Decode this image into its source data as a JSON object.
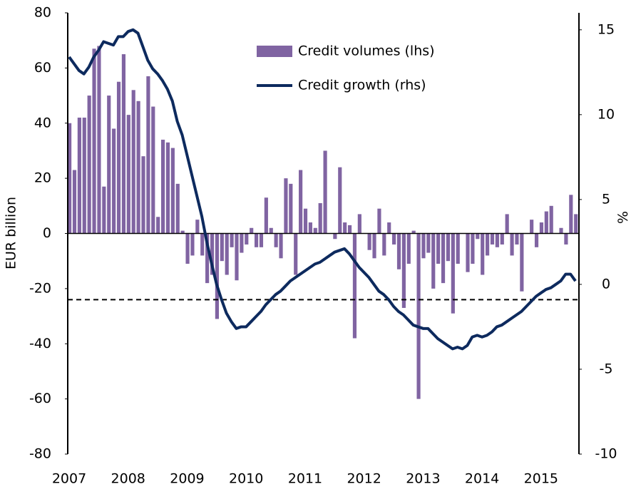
{
  "chart_data": {
    "type": "bar-line",
    "y_label": "EUR billion",
    "y2_label": "%",
    "categories": [
      "2007",
      null,
      null,
      null,
      null,
      null,
      null,
      null,
      null,
      null,
      null,
      null,
      "2008",
      null,
      null,
      null,
      null,
      null,
      null,
      null,
      null,
      null,
      null,
      null,
      "2009",
      null,
      null,
      null,
      null,
      null,
      null,
      null,
      null,
      null,
      null,
      null,
      "2010",
      null,
      null,
      null,
      null,
      null,
      null,
      null,
      null,
      null,
      null,
      null,
      "2011",
      null,
      null,
      null,
      null,
      null,
      null,
      null,
      null,
      null,
      null,
      null,
      "2012",
      null,
      null,
      null,
      null,
      null,
      null,
      null,
      null,
      null,
      null,
      null,
      "2013",
      null,
      null,
      null,
      null,
      null,
      null,
      null,
      null,
      null,
      null,
      null,
      "2014",
      null,
      null,
      null,
      null,
      null,
      null,
      null,
      null,
      null,
      null,
      null,
      "2015",
      null,
      null,
      null,
      null,
      null,
      null,
      null
    ],
    "series": [
      {
        "name": "Credit volumes (lhs)",
        "type": "bar",
        "color": "#8064a2",
        "values": [
          40,
          23,
          42,
          42,
          50,
          67,
          68,
          17,
          50,
          38,
          55,
          65,
          43,
          52,
          48,
          28,
          57,
          46,
          6,
          34,
          33,
          31,
          18,
          1,
          -11,
          -8,
          5,
          -8,
          -18,
          -15,
          -31,
          -10,
          -15,
          -5,
          -17,
          -7,
          -4,
          2,
          -5,
          -5,
          13,
          2,
          -5,
          -9,
          20,
          18,
          -15,
          23,
          9,
          4,
          2,
          11,
          30,
          0,
          -2,
          24,
          4,
          3,
          -38,
          7,
          0,
          -6,
          -9,
          9,
          -8,
          4,
          -4,
          -13,
          -27,
          -11,
          1,
          -60,
          -9,
          -7,
          -20,
          -11,
          -18,
          -10,
          -29,
          -11,
          0,
          -14,
          -11,
          -2,
          -15,
          -8,
          -4,
          -5,
          -4,
          7,
          -8,
          -4,
          -21,
          0,
          5,
          -5,
          4,
          8,
          10,
          0,
          2,
          -4,
          14,
          7
        ]
      },
      {
        "name": "Credit growth (rhs)",
        "type": "line",
        "axis": "y2",
        "color": "#0d2a5e",
        "values": [
          13.4,
          13.0,
          12.6,
          12.4,
          12.8,
          13.4,
          13.8,
          14.3,
          14.2,
          14.1,
          14.6,
          14.6,
          14.9,
          15.0,
          14.8,
          14.0,
          13.2,
          12.7,
          12.4,
          12.0,
          11.5,
          10.8,
          9.6,
          8.8,
          7.6,
          6.4,
          5.2,
          4.0,
          2.5,
          1.2,
          0.0,
          -0.9,
          -1.7,
          -2.2,
          -2.6,
          -2.5,
          -2.5,
          -2.2,
          -1.9,
          -1.6,
          -1.2,
          -0.9,
          -0.6,
          -0.4,
          -0.1,
          0.2,
          0.4,
          0.6,
          0.8,
          1.0,
          1.2,
          1.3,
          1.5,
          1.7,
          1.9,
          2.0,
          2.1,
          1.8,
          1.4,
          1.0,
          0.7,
          0.4,
          0.0,
          -0.4,
          -0.6,
          -0.9,
          -1.3,
          -1.6,
          -1.8,
          -2.1,
          -2.4,
          -2.5,
          -2.6,
          -2.6,
          -2.9,
          -3.2,
          -3.4,
          -3.6,
          -3.8,
          -3.7,
          -3.8,
          -3.6,
          -3.1,
          -3.0,
          -3.1,
          -3.0,
          -2.8,
          -2.5,
          -2.4,
          -2.2,
          -2.0,
          -1.8,
          -1.6,
          -1.3,
          -1.0,
          -0.7,
          -0.5,
          -0.3,
          -0.2,
          0.0,
          0.2,
          0.6,
          0.6,
          0.2
        ]
      }
    ],
    "ylim": [
      -80,
      80
    ],
    "yticks": [
      -80,
      -60,
      -40,
      -20,
      0,
      20,
      40,
      60,
      80
    ],
    "y2lim": [
      -10,
      16
    ],
    "y2ticks": [
      -10,
      -5,
      0,
      5,
      10,
      15
    ],
    "reference_line": -24,
    "legend": "top-center",
    "grid": false
  }
}
